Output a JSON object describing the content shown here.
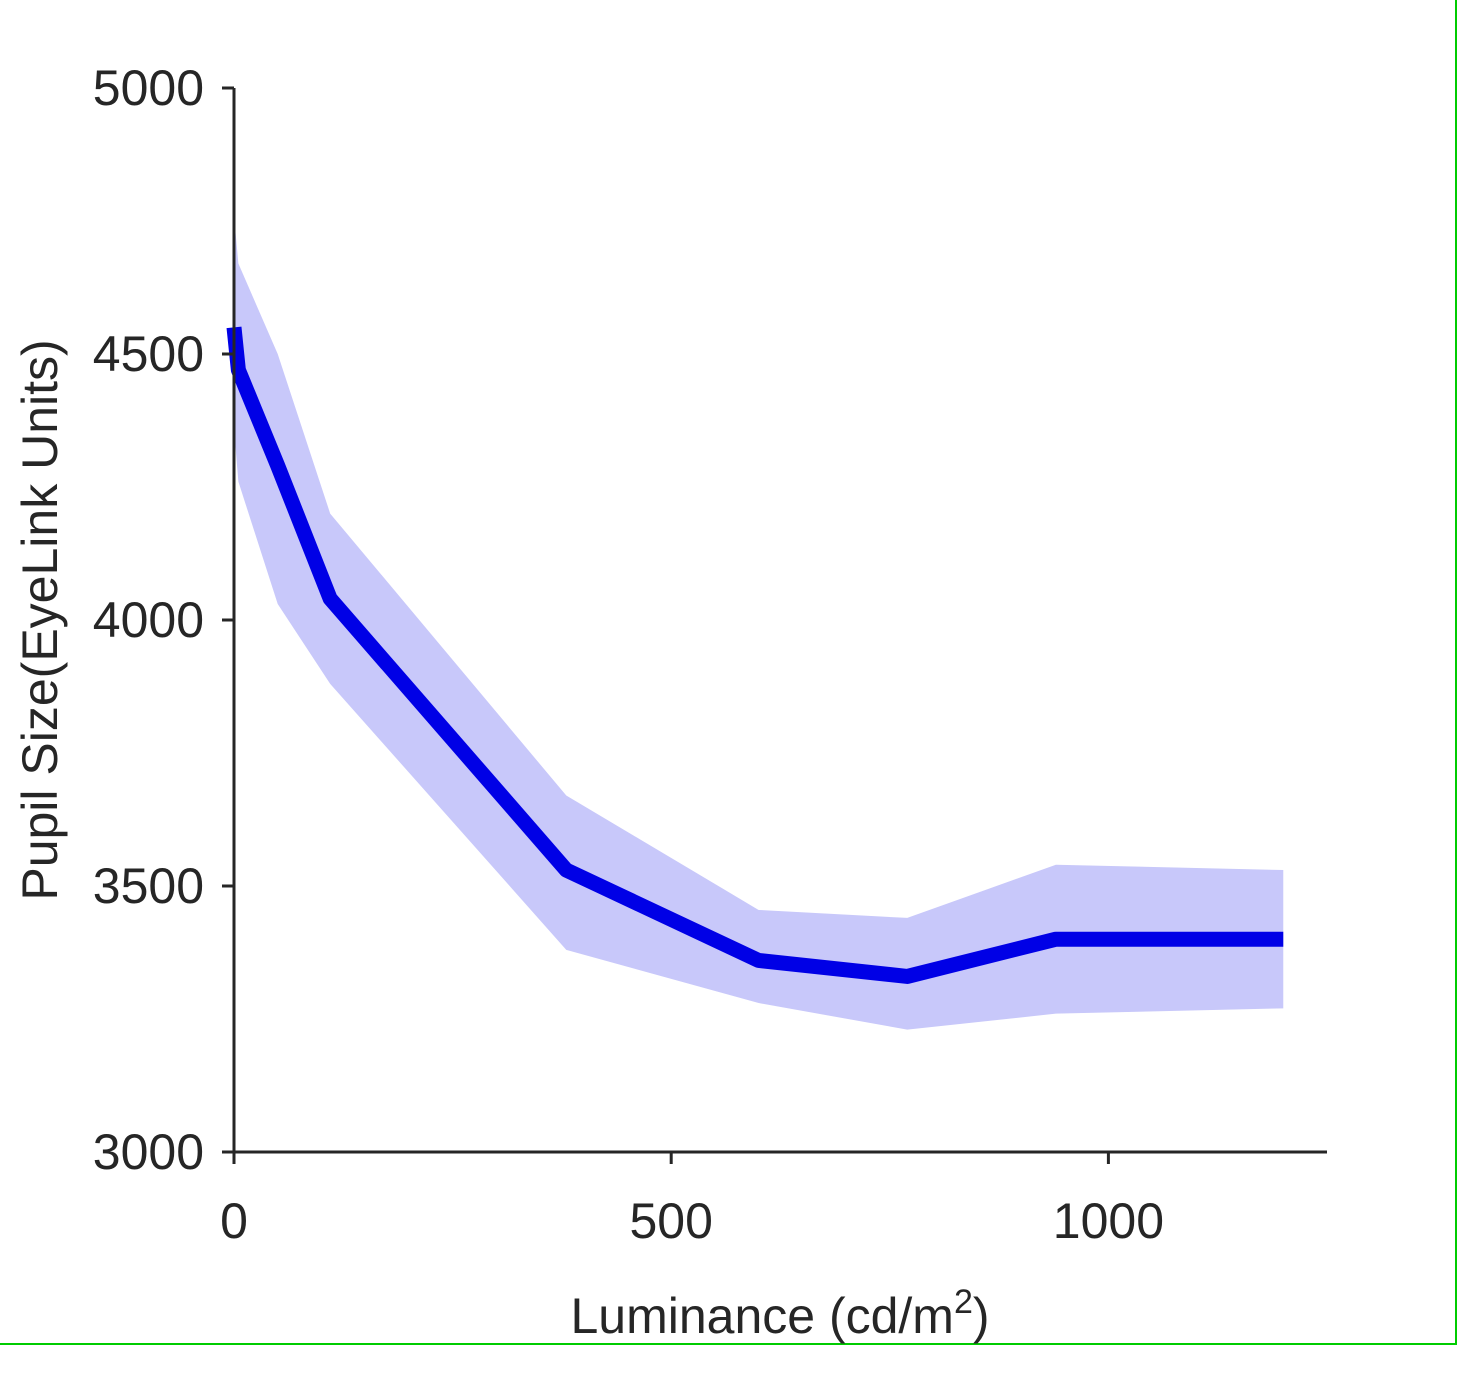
{
  "chart_data": {
    "type": "line",
    "title": "",
    "xlabel": "Luminance (cd/m",
    "xlabel_superscript": "2",
    "xlabel_suffix": ")",
    "ylabel": "Pupil Size(EyeLink Units)",
    "xlim": [
      0,
      1250
    ],
    "ylim": [
      3000,
      5000
    ],
    "xticks": [
      0,
      500,
      1000
    ],
    "yticks": [
      3000,
      3500,
      4000,
      4500,
      5000
    ],
    "xtick_labels": [
      "0",
      "500",
      "1000"
    ],
    "ytick_labels": [
      "3000",
      "3500",
      "4000",
      "4500",
      "5000"
    ],
    "grid": false,
    "series": [
      {
        "x": [
          0,
          5,
          50,
          110,
          380,
          600,
          770,
          940,
          1200
        ],
        "y": [
          4550,
          4470,
          4290,
          4040,
          3530,
          3360,
          3330,
          3400,
          3400
        ],
        "upper": [
          4760,
          4670,
          4500,
          4200,
          3670,
          3455,
          3440,
          3540,
          3530
        ],
        "lower": [
          4360,
          4260,
          4030,
          3880,
          3380,
          3280,
          3230,
          3260,
          3270
        ],
        "line_color": "#0000e6",
        "band_color": "#c8c8fa"
      }
    ],
    "axis_color": "#262626"
  }
}
